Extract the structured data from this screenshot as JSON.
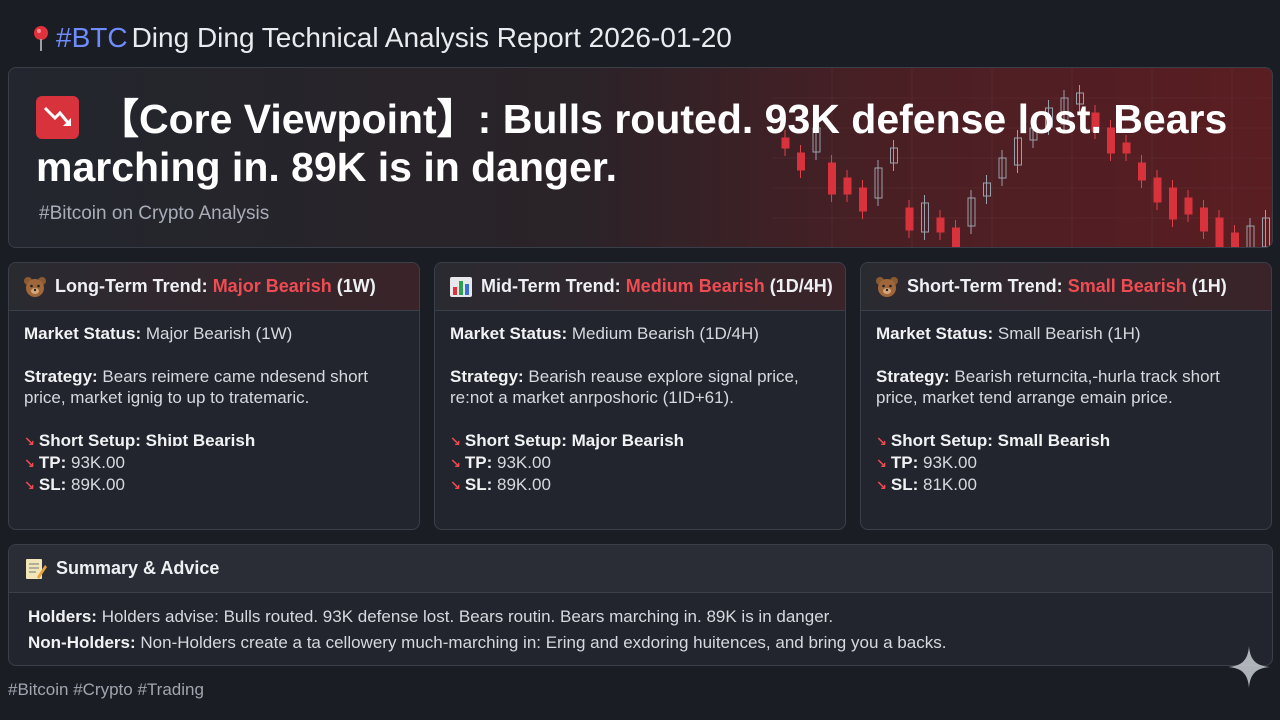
{
  "header": {
    "hashtag": "#BTC",
    "title": "Ding Ding Technical Analysis Report 2026-01-20"
  },
  "core": {
    "bracket_open": "【",
    "label": "Core Viewpoint",
    "bracket_close": "】",
    "statement": ": Bulls routed. 93K defense lost. Bears marching in. 89K is in danger.",
    "subtitle": "#Bitcoin on Crypto Analysis"
  },
  "cards": [
    {
      "title_prefix": "Long-Term Trend: ",
      "title_trend": "Major Bearish",
      "title_suffix": " (1W)",
      "icon": "bear-icon",
      "status_label": "Market Status:",
      "status_value": " Major Bearish (1W)",
      "strategy_label": "Strategy:",
      "strategy_value": " Bears reimere came ndesend short price, market ignig to up to tratemaric.",
      "setup_label": "Short Setup:",
      "setup_value": " Shiɒt Bearish",
      "tp_label": "TP:",
      "tp_value": " 93K.00",
      "sl_label": "SL:",
      "sl_value": " 89K.00"
    },
    {
      "title_prefix": "Mid-Term Trend: ",
      "title_trend": "Medium Bearish",
      "title_suffix": " (1D/4H)",
      "icon": "bar-chart-icon",
      "status_label": "Market Status:",
      "status_value": " Medium Bearish (1D/4H)",
      "strategy_label": "Strategy:",
      "strategy_value": " Bearish reause explore signal price, re:not a market anrposhoric (1ID+61).",
      "setup_label": "Short Setup:",
      "setup_value": " Major Bearish",
      "tp_label": "TP:",
      "tp_value": " 93K.00",
      "sl_label": "SL:",
      "sl_value": " 89K.00"
    },
    {
      "title_prefix": "Short-Term Trend: ",
      "title_trend": "Small Bearish",
      "title_suffix": " (1H)",
      "icon": "bear-icon",
      "status_label": "Market Status:",
      "status_value": " Small Bearish (1H)",
      "strategy_label": "Strategy:",
      "strategy_value": " Bearish returncita,-hurla track short price, market tend arrange emain price.",
      "setup_label": "Short Setup:",
      "setup_value": " Small Bearish",
      "tp_label": "TP:",
      "tp_value": " 93K.00",
      "sl_label": "SL:",
      "sl_value": " 81K.00"
    }
  ],
  "summary": {
    "title": "Summary & Advice",
    "holders_label": "Holders:",
    "holders_text": " Holders advise: Bulls routed. 93K defense lost. Bears routin. Bears marching in. 89K is in danger.",
    "nonholders_label": "Non-Holders:",
    "nonholders_text": " Non-Holders create a ta cellowery much-marching in: Ering and exdoring huitences, and bring you a backs."
  },
  "footer": {
    "tags": "#Bitcoin #Crypto #Trading"
  },
  "colors": {
    "bearish_red": "#ef4b52",
    "hashtag_blue": "#6f8cff",
    "background": "#1a1d24"
  }
}
